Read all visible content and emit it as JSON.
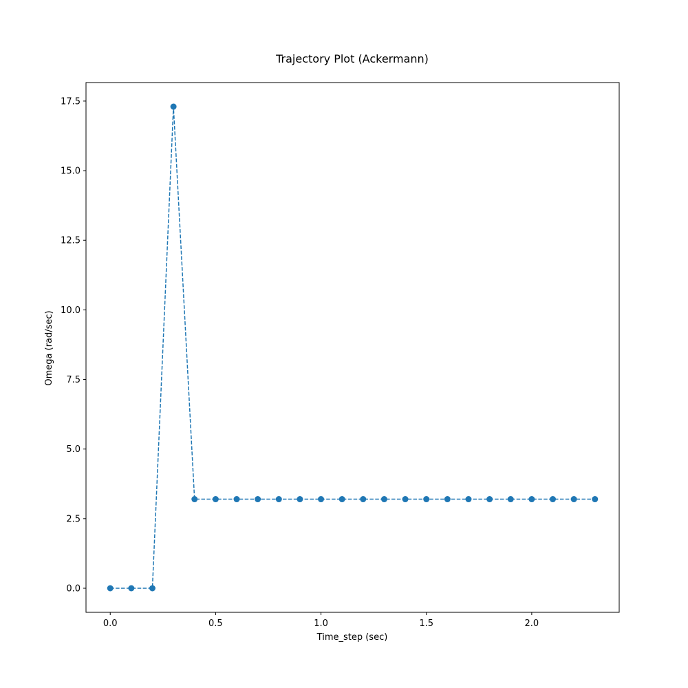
{
  "chart_data": {
    "type": "line",
    "title": "Trajectory Plot (Ackermann)",
    "xlabel": "Time_step (sec)",
    "ylabel": "Omega (rad/sec)",
    "xlim": [
      -0.115,
      2.415
    ],
    "ylim": [
      -0.865,
      18.165
    ],
    "xticks": [
      0.0,
      0.5,
      1.0,
      1.5,
      2.0
    ],
    "xtick_labels": [
      "0.0",
      "0.5",
      "1.0",
      "1.5",
      "2.0"
    ],
    "yticks": [
      0.0,
      2.5,
      5.0,
      7.5,
      10.0,
      12.5,
      15.0,
      17.5
    ],
    "ytick_labels": [
      "0.0",
      "2.5",
      "5.0",
      "7.5",
      "10.0",
      "12.5",
      "15.0",
      "17.5"
    ],
    "grid": false,
    "series": [
      {
        "color": "#1f77b4",
        "line_style": "dashed",
        "marker": "circle",
        "x": [
          0.0,
          0.1,
          0.2,
          0.3,
          0.4,
          0.5,
          0.6,
          0.7,
          0.8,
          0.9,
          1.0,
          1.1,
          1.2,
          1.3,
          1.4,
          1.5,
          1.6,
          1.7,
          1.8,
          1.9,
          2.0,
          2.1,
          2.2,
          2.3
        ],
        "y": [
          0.0,
          0.0,
          0.0,
          17.3,
          3.2,
          3.2,
          3.2,
          3.2,
          3.2,
          3.2,
          3.2,
          3.2,
          3.2,
          3.2,
          3.2,
          3.2,
          3.2,
          3.2,
          3.2,
          3.2,
          3.2,
          3.2,
          3.2,
          3.2
        ]
      }
    ]
  }
}
